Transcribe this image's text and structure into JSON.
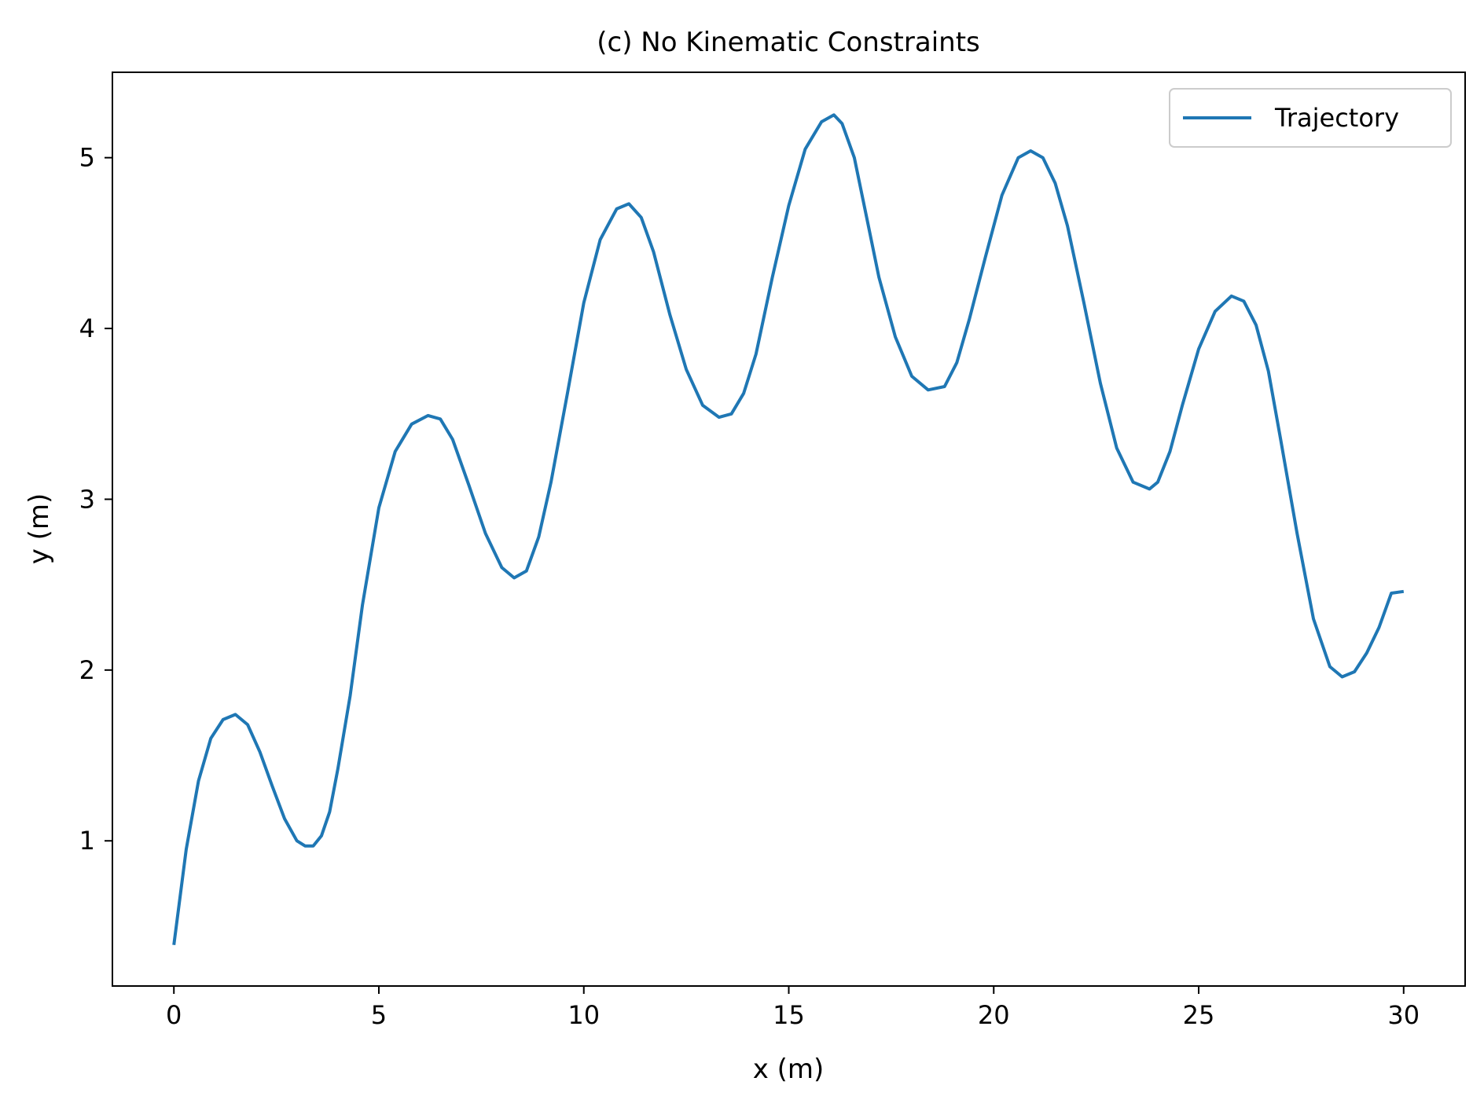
{
  "chart_data": {
    "type": "line",
    "title": "(c) No Kinematic Constraints",
    "xlabel": "x (m)",
    "ylabel": "y (m)",
    "xlim": [
      -1.5,
      31.5
    ],
    "ylim": [
      0.15,
      5.5
    ],
    "xticks": [
      0,
      5,
      10,
      15,
      20,
      25,
      30
    ],
    "yticks": [
      1,
      2,
      3,
      4,
      5
    ],
    "xtick_labels": [
      "0",
      "5",
      "10",
      "15",
      "20",
      "25",
      "30"
    ],
    "ytick_labels": [
      "1",
      "2",
      "3",
      "4",
      "5"
    ],
    "grid": false,
    "legend": {
      "position": "top-right",
      "entries": [
        "Trajectory"
      ]
    },
    "series": [
      {
        "name": "Trajectory",
        "color": "#1f77b4",
        "x": [
          0,
          0.3,
          0.6,
          0.9,
          1.2,
          1.5,
          1.8,
          2.1,
          2.4,
          2.7,
          3.0,
          3.2,
          3.4,
          3.6,
          3.8,
          4.0,
          4.3,
          4.6,
          5.0,
          5.4,
          5.8,
          6.2,
          6.5,
          6.8,
          7.2,
          7.6,
          8.0,
          8.3,
          8.6,
          8.9,
          9.2,
          9.6,
          10.0,
          10.4,
          10.8,
          11.1,
          11.4,
          11.7,
          12.1,
          12.5,
          12.9,
          13.3,
          13.6,
          13.9,
          14.2,
          14.6,
          15.0,
          15.4,
          15.8,
          16.1,
          16.3,
          16.6,
          16.9,
          17.2,
          17.6,
          18.0,
          18.4,
          18.8,
          19.1,
          19.4,
          19.8,
          20.2,
          20.6,
          20.9,
          21.2,
          21.5,
          21.8,
          22.2,
          22.6,
          23.0,
          23.4,
          23.8,
          24.0,
          24.3,
          24.6,
          25.0,
          25.4,
          25.8,
          26.1,
          26.4,
          26.7,
          27.0,
          27.4,
          27.8,
          28.2,
          28.5,
          28.8,
          29.1,
          29.4,
          29.7,
          30.0
        ],
        "y": [
          0.39,
          0.95,
          1.35,
          1.6,
          1.71,
          1.74,
          1.68,
          1.52,
          1.32,
          1.13,
          1.0,
          0.97,
          0.97,
          1.03,
          1.17,
          1.42,
          1.85,
          2.38,
          2.95,
          3.28,
          3.44,
          3.49,
          3.47,
          3.35,
          3.08,
          2.8,
          2.6,
          2.54,
          2.58,
          2.78,
          3.1,
          3.62,
          4.15,
          4.52,
          4.7,
          4.73,
          4.65,
          4.45,
          4.08,
          3.76,
          3.55,
          3.48,
          3.5,
          3.62,
          3.85,
          4.3,
          4.72,
          5.05,
          5.21,
          5.25,
          5.2,
          5.0,
          4.65,
          4.3,
          3.95,
          3.72,
          3.64,
          3.66,
          3.8,
          4.05,
          4.42,
          4.78,
          5.0,
          5.04,
          5.0,
          4.85,
          4.6,
          4.15,
          3.68,
          3.3,
          3.1,
          3.06,
          3.1,
          3.28,
          3.55,
          3.88,
          4.1,
          4.19,
          4.16,
          4.02,
          3.75,
          3.35,
          2.8,
          2.3,
          2.02,
          1.96,
          1.99,
          2.1,
          2.25,
          2.45,
          2.46
        ]
      }
    ]
  }
}
